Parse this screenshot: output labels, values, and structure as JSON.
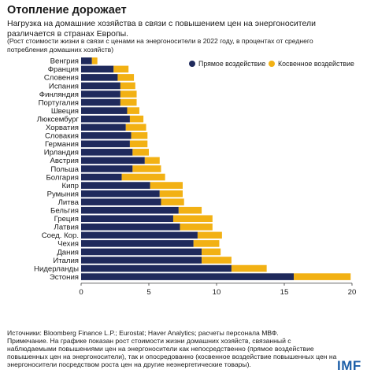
{
  "header": {
    "title": "Отопление дорожает",
    "subtitle": "Нагрузка на домашние хозяйства в связи с повышением цен на энергоносители различается в странах Европы.",
    "note": "(Рост стоимости жизни в связи с ценами на энергоносители в 2022 году, в процентах от среднего потребления домашних хозяйств)"
  },
  "footer": {
    "source": "Источники: Bloomberg Finance L.P.; Eurostat; Haver Analytics; расчеты персонала МВФ.",
    "remark": "Примечание. На графике показан рост стоимости жизни домашних хозяйств, связанный с наблюдаемыми повышениями цен на энергоносители как непосредственно (прямое воздействие повышенных цен на энергоносители), так и опосредованно (косвенное воздействие повышенных цен на энергоносители посредством роста цен на другие неэнергетические товары).",
    "logo": "IMF"
  },
  "chart_data": {
    "type": "bar",
    "orientation": "horizontal",
    "stacked": true,
    "categories": [
      "Венгрия",
      "Франция",
      "Словения",
      "Испания",
      "Финляндия",
      "Португалия",
      "Швеция",
      "Люксембург",
      "Хорватия",
      "Словакия",
      "Германия",
      "Ирландия",
      "Австрия",
      "Польша",
      "Болгария",
      "Кипр",
      "Румыния",
      "Литва",
      "Бельгия",
      "Греция",
      "Латвия",
      "Соед. Кор.",
      "Чехия",
      "Дания",
      "Италия",
      "Нидерланды",
      "Эстония"
    ],
    "series": [
      {
        "name": "Прямое воздействие",
        "color": "#1f2a5c",
        "values": [
          0.8,
          2.4,
          2.7,
          2.9,
          2.9,
          2.9,
          3.4,
          3.6,
          3.3,
          3.7,
          3.6,
          3.8,
          4.7,
          3.8,
          3.0,
          5.1,
          5.8,
          5.9,
          7.2,
          6.8,
          7.3,
          8.6,
          8.3,
          8.9,
          8.9,
          11.1,
          15.7
        ]
      },
      {
        "name": "Косвенное воздействие",
        "color": "#f2b114",
        "values": [
          0.4,
          1.1,
          1.2,
          1.1,
          1.2,
          1.2,
          0.9,
          1.0,
          1.5,
          1.2,
          1.3,
          1.2,
          1.1,
          2.1,
          3.2,
          2.4,
          1.7,
          1.7,
          1.7,
          2.9,
          2.4,
          1.8,
          1.9,
          1.4,
          2.2,
          2.6,
          4.2
        ]
      }
    ],
    "xlim": [
      0,
      20
    ],
    "xticks": [
      0,
      5,
      10,
      15,
      20
    ],
    "grid": false,
    "legend": "top-right"
  }
}
